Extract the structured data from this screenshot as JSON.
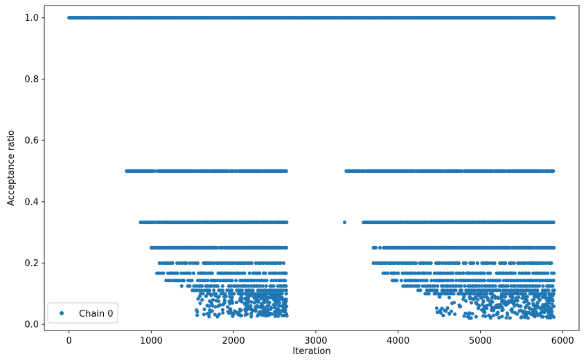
{
  "chart_data": {
    "type": "scatter",
    "title": "",
    "xlabel": "Iteration",
    "ylabel": "Acceptance ratio",
    "xlim": [
      -300,
      6200
    ],
    "ylim": [
      -0.02,
      1.04
    ],
    "x_ticks": [
      0,
      1000,
      2000,
      3000,
      4000,
      5000,
      6000
    ],
    "y_ticks": [
      0.0,
      0.2,
      0.4,
      0.6,
      0.8,
      1.0
    ],
    "x_tick_labels": [
      "0",
      "1000",
      "2000",
      "3000",
      "4000",
      "5000",
      "6000"
    ],
    "y_tick_labels": [
      "0.0",
      "0.2",
      "0.4",
      "0.6",
      "0.8",
      "1.0"
    ],
    "grid": false,
    "legend": {
      "position": "lower-left",
      "entries": [
        "Chain 0"
      ]
    },
    "series": [
      {
        "name": "Chain 0",
        "color": "#1f77b4",
        "marker": "circle",
        "segments": [
          {
            "x_start": 0,
            "x_end": 2650
          },
          {
            "x_start": 3350,
            "x_end": 5900
          }
        ],
        "levels": [
          {
            "y": 1.0,
            "ranges": [
              [
                0,
                2650
              ],
              [
                2650,
                3350
              ],
              [
                3350,
                5900
              ]
            ],
            "density": "continuous"
          },
          {
            "y": 0.5,
            "ranges": [
              [
                700,
                2650
              ],
              [
                3370,
                5900
              ]
            ],
            "density": "dense"
          },
          {
            "y": 0.333,
            "ranges": [
              [
                870,
                2650
              ],
              [
                3350,
                3350
              ],
              [
                3580,
                5900
              ]
            ],
            "density": "dense"
          },
          {
            "y": 0.25,
            "ranges": [
              [
                1000,
                2650
              ],
              [
                3700,
                5900
              ]
            ],
            "density": "dense"
          },
          {
            "y": 0.2,
            "ranges": [
              [
                1100,
                2650
              ],
              [
                3700,
                5900
              ]
            ],
            "density": "medium"
          },
          {
            "y": 0.167,
            "ranges": [
              [
                1070,
                2650
              ],
              [
                3820,
                5900
              ]
            ],
            "density": "medium"
          },
          {
            "y": 0.143,
            "ranges": [
              [
                1180,
                2650
              ],
              [
                3930,
                5900
              ]
            ],
            "density": "medium"
          },
          {
            "y": 0.125,
            "ranges": [
              [
                1370,
                2650
              ],
              [
                4060,
                5900
              ]
            ],
            "density": "medium"
          },
          {
            "y": 0.111,
            "ranges": [
              [
                1500,
                2650
              ],
              [
                4200,
                5900
              ]
            ],
            "density": "medium"
          },
          {
            "y": 0.1,
            "ranges": [
              [
                1600,
                2650
              ],
              [
                4330,
                5900
              ]
            ],
            "density": "medium"
          }
        ],
        "low_cluster": [
          {
            "x_range": [
              1480,
              2650
            ],
            "y_range": [
              0.025,
              0.095
            ]
          },
          {
            "x_range": [
              4360,
              5900
            ],
            "y_range": [
              0.02,
              0.095
            ]
          }
        ]
      }
    ]
  }
}
